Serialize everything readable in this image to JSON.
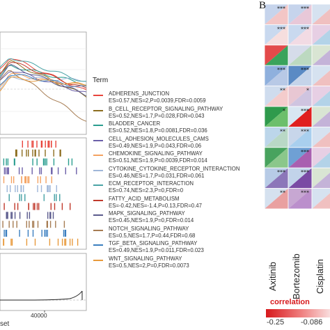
{
  "panel_b_label": "B",
  "gsea": {
    "legend_title": "Term",
    "x_axis_label_fragment": "set",
    "x_tick_label": "40000",
    "terms": [
      {
        "name": "ADHERENS_JUNCTION",
        "stat": "ES=0.57,NES=2,P=0.0039,FDR=0.0059",
        "color": "#e8453c"
      },
      {
        "name": "B_CELL_RECEPTOR_SIGNALING_PATHWAY",
        "stat": "ES=0.52,NES=1.7,P=0.028,FDR=0.043",
        "color": "#8c6d1f"
      },
      {
        "name": "BLADDER_CANCER",
        "stat": "ES=0.52,NES=1.8,P=0.0081,FDR=0.036",
        "color": "#2a9d8f"
      },
      {
        "name": "CELL_ADHESION_MOLECULES_CAMS",
        "stat": "ES=0.49,NES=1.9,P=0.043,FDR=0.06",
        "color": "#6b5fa8"
      },
      {
        "name": "CHEMOKINE_SIGNALING_PATHWAY",
        "stat": "ES=0.51,NES=1.9,P=0.0039,FDR=0.014",
        "color": "#f4a261"
      },
      {
        "name": "CYTOKINE_CYTOKINE_RECEPTOR_INTERACTION",
        "stat": "ES=0.46,NES=1.7,P=0.031,FDR=0.061",
        "color": "#9fb6d8"
      },
      {
        "name": "ECM_RECEPTOR_INTERACTION",
        "stat": "ES=0.74,NES=2.3,P=0,FDR=0",
        "color": "#4aa3a6"
      },
      {
        "name": "FATTY_ACID_METABOLISM",
        "stat": "ES=-0.42,NES=-1.4,P=0.13,FDR=0.47",
        "color": "#c0392b"
      },
      {
        "name": "MAPK_SIGNALING_PATHWAY",
        "stat": "ES=0.45,NES=1.9,P=0,FDR=0.014",
        "color": "#5a5a8c"
      },
      {
        "name": "NOTCH_SIGNALING_PATHWAY",
        "stat": "ES=0.5,NES=1.7,P=0.44,FDR=0.68",
        "color": "#a67c52"
      },
      {
        "name": "TGF_BETA_SIGNALING_PATHWAY",
        "stat": "ES=0.49,NES=1.9,P=0.011,FDR=0.023",
        "color": "#3a7ebf"
      },
      {
        "name": "WNT_SIGNALING_PATHWAY",
        "stat": "ES=0.5,NES=2,P=0,FDR=0.0073",
        "color": "#e89a3c"
      }
    ]
  },
  "correlation": {
    "drugs": [
      "Axitinib",
      "Bortezomib",
      "Cisplatin"
    ],
    "colorbar_title": "correlation",
    "colorbar_ticks": [
      "-0.25",
      "-0.086"
    ],
    "colors": {
      "negative": "#d7191c",
      "positive": "#2c7bb6",
      "green": "#1a9850",
      "purple": "#7b3294",
      "magenta": "#c51b7d"
    }
  },
  "chart_data": [
    {
      "type": "line",
      "panel": "A",
      "xlabel": "",
      "ylabel": "",
      "legend_title": "Term",
      "legend_placement": "right",
      "series": [
        {
          "name": "ADHERENS_JUNCTION"
        },
        {
          "name": "B_CELL_RECEPTOR_SIGNALING_PATHWAY"
        },
        {
          "name": "BLADDER_CANCER"
        },
        {
          "name": "CELL_ADHESION_MOLECULES_CAMS"
        },
        {
          "name": "CHEMOKINE_SIGNALING_PATHWAY"
        },
        {
          "name": "CYTOKINE_CYTOKINE_RECEPTOR_INTERACTION"
        },
        {
          "name": "ECM_RECEPTOR_INTERACTION"
        },
        {
          "name": "FATTY_ACID_METABOLISM"
        },
        {
          "name": "MAPK_SIGNALING_PATHWAY"
        },
        {
          "name": "NOTCH_SIGNALING_PATHWAY"
        },
        {
          "name": "TGF_BETA_SIGNALING_PATHWAY"
        },
        {
          "name": "WNT_SIGNALING_PATHWAY"
        }
      ]
    },
    {
      "type": "heatmap",
      "panel": "B",
      "columns": [
        "Axitinib",
        "Bortezomib",
        "Cisplatin"
      ],
      "legend_title": "correlation",
      "legend_ticks": [
        -0.25,
        -0.086
      ],
      "cells": [
        {
          "row": 0,
          "col": 0,
          "upper": "#c6d4ec",
          "lower": "#f3c6c6",
          "sig": "***"
        },
        {
          "row": 0,
          "col": 1,
          "upper": "#c6d4ec",
          "lower": "#e8c8d8",
          "sig": "***"
        },
        {
          "row": 1,
          "col": 0,
          "upper": "#c9d9ef",
          "lower": "#f6dede",
          "sig": "***"
        },
        {
          "row": 1,
          "col": 1,
          "upper": "#c9d9ef",
          "lower": "#f2dbe4",
          "sig": "***"
        },
        {
          "row": 2,
          "col": 0,
          "upper": "#e34a4a",
          "lower": "#3aa35c",
          "sig": ""
        },
        {
          "row": 2,
          "col": 1,
          "upper": "#d6dcea",
          "lower": "#bcd9c0",
          "sig": ""
        },
        {
          "row": 3,
          "col": 0,
          "upper": "#8fb0dd",
          "lower": "#b8c9e6",
          "sig": "***"
        },
        {
          "row": 3,
          "col": 1,
          "upper": "#5a8ac4",
          "lower": "#c5d4ea",
          "sig": "***"
        },
        {
          "row": 4,
          "col": 0,
          "upper": "#cfdcee",
          "lower": "#f4cccc",
          "sig": "**"
        },
        {
          "row": 4,
          "col": 1,
          "upper": "#e8c7d3",
          "lower": "#cfc4e0",
          "sig": "*"
        },
        {
          "row": 5,
          "col": 0,
          "upper": "#2f9a4c",
          "lower": "#6cbf6c",
          "sig": "*"
        },
        {
          "row": 5,
          "col": 1,
          "upper": "#d8e6f2",
          "lower": "#e01f1f",
          "sig": "***"
        },
        {
          "row": 6,
          "col": 0,
          "upper": "#bcd6ea",
          "lower": "#b9d8c6",
          "sig": "**"
        },
        {
          "row": 6,
          "col": 1,
          "upper": "#c8d6ea",
          "lower": "#a9cfee",
          "sig": "***"
        },
        {
          "row": 7,
          "col": 0,
          "upper": "#48a35e",
          "lower": "#8bc78b",
          "sig": ""
        },
        {
          "row": 7,
          "col": 1,
          "upper": "#6fa0d4",
          "lower": "#a95fb0",
          "sig": "***"
        },
        {
          "row": 8,
          "col": 0,
          "upper": "#b7cbe6",
          "lower": "#8c76b9",
          "sig": "***"
        },
        {
          "row": 8,
          "col": 1,
          "upper": "#c2d3ea",
          "lower": "#7a4aa4",
          "sig": "***"
        },
        {
          "row": 9,
          "col": 0,
          "upper": "#d5e1ef",
          "lower": "#e9a0a0",
          "sig": "**"
        },
        {
          "row": 9,
          "col": 1,
          "upper": "#c7a7d2",
          "lower": "#bb8fcc",
          "sig": "***"
        }
      ]
    }
  ]
}
